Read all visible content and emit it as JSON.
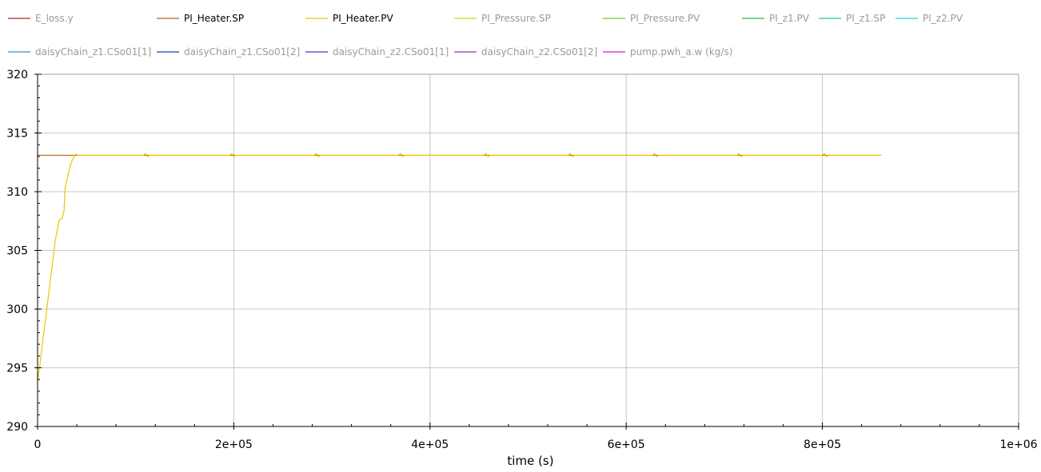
{
  "chart_data": {
    "type": "line",
    "xlabel": "time (s)",
    "ylabel": "",
    "xlim": [
      0,
      1000000
    ],
    "ylim": [
      290,
      320
    ],
    "grid": true,
    "legend_position": "top",
    "x_ticks": [
      {
        "value": 0,
        "label": "0"
      },
      {
        "value": 200000,
        "label": "2e+05"
      },
      {
        "value": 400000,
        "label": "4e+05"
      },
      {
        "value": 600000,
        "label": "6e+05"
      },
      {
        "value": 800000,
        "label": "8e+05"
      },
      {
        "value": 1000000,
        "label": "1e+06"
      }
    ],
    "y_ticks": [
      {
        "value": 290,
        "label": "290"
      },
      {
        "value": 295,
        "label": "295"
      },
      {
        "value": 300,
        "label": "300"
      },
      {
        "value": 305,
        "label": "305"
      },
      {
        "value": 310,
        "label": "310"
      },
      {
        "value": 315,
        "label": "315"
      },
      {
        "value": 320,
        "label": "320"
      }
    ],
    "legend": [
      {
        "name": "E_loss.y",
        "color": "#a52a2a",
        "active": false
      },
      {
        "name": "PI_Heater.SP",
        "color": "#b8651b",
        "active": true
      },
      {
        "name": "PI_Heater.PV",
        "color": "#e8c800",
        "active": true
      },
      {
        "name": "PI_Pressure.SP",
        "color": "#c8e000",
        "active": false
      },
      {
        "name": "PI_Pressure.PV",
        "color": "#66cc22",
        "active": false
      },
      {
        "name": "PI_z1.PV",
        "color": "#22bb44",
        "active": false
      },
      {
        "name": "PI_z1.SP",
        "color": "#22ccaa",
        "active": false
      },
      {
        "name": "PI_z2.PV",
        "color": "#22ccdd",
        "active": false
      },
      {
        "name": "daisyChain_z1.CSo01[1]",
        "color": "#2a8fd4",
        "active": false
      },
      {
        "name": "daisyChain_z1.CSo01[2]",
        "color": "#1f3fbf",
        "active": false
      },
      {
        "name": "daisyChain_z2.CSo01[1]",
        "color": "#5a2ec8",
        "active": false
      },
      {
        "name": "daisyChain_z2.CSo01[2]",
        "color": "#9a2ec8",
        "active": false
      },
      {
        "name": "pump.pwh_a.w (kg/s)",
        "color": "#cc22cc",
        "active": false
      }
    ],
    "series": [
      {
        "name": "PI_Heater.SP",
        "color": "#b8651b",
        "x": [
          0,
          860000
        ],
        "y": [
          313.1,
          313.1
        ]
      },
      {
        "name": "PI_Heater.PV",
        "color": "#e8c800",
        "x": [
          0,
          2000,
          6000,
          10000,
          14000,
          18000,
          22000,
          25000,
          27000,
          28000,
          31000,
          34000,
          37000,
          39000,
          41000,
          60000,
          108000,
          110000,
          112000,
          114000,
          196000,
          198000,
          200000,
          202000,
          282000,
          284000,
          286000,
          288000,
          368000,
          370000,
          372000,
          374000,
          455000,
          457000,
          459000,
          461000,
          541000,
          543000,
          545000,
          547000,
          627000,
          629000,
          631000,
          633000,
          713000,
          715000,
          717000,
          719000,
          800000,
          802000,
          804000,
          806000,
          860000
        ],
        "y": [
          293.9,
          295.0,
          297.8,
          300.4,
          303.1,
          305.8,
          307.6,
          307.7,
          308.4,
          310.3,
          311.4,
          312.4,
          313.0,
          313.2,
          313.1,
          313.1,
          313.1,
          313.25,
          313.0,
          313.1,
          313.1,
          313.25,
          313.0,
          313.1,
          313.1,
          313.25,
          313.0,
          313.1,
          313.1,
          313.25,
          313.0,
          313.1,
          313.1,
          313.25,
          313.0,
          313.1,
          313.1,
          313.25,
          313.0,
          313.1,
          313.1,
          313.25,
          313.0,
          313.1,
          313.1,
          313.25,
          313.0,
          313.1,
          313.1,
          313.25,
          313.0,
          313.1,
          313.1
        ]
      }
    ]
  }
}
